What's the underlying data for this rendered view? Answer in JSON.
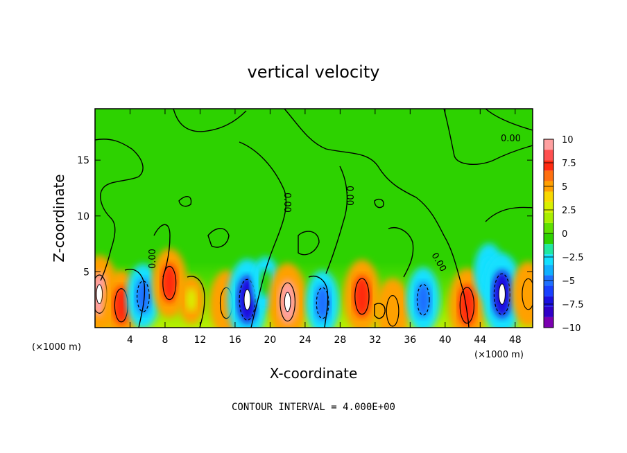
{
  "chart_data": {
    "type": "heatmap",
    "title": "vertical velocity",
    "xlabel": "X-coordinate",
    "ylabel": "Z-coordinate",
    "x_unit_left": "(×1000 m)",
    "x_unit_right": "(×1000 m)",
    "xlim": [
      0,
      50
    ],
    "ylim": [
      0,
      19.6
    ],
    "x_ticks": [
      4,
      8,
      12,
      16,
      20,
      24,
      28,
      32,
      36,
      40,
      44,
      48
    ],
    "y_ticks": [
      5,
      10,
      15
    ],
    "contour_interval_text": "CONTOUR INTERVAL = 4.000E+00",
    "contour_labels": [
      "0.00",
      "0.00",
      "0.00",
      "0.00",
      "0.00"
    ],
    "colorbar": {
      "min": -10,
      "max": 10,
      "tick_labels": [
        "10",
        "7.5",
        "5",
        "2.5",
        "0",
        "−2.5",
        "−5",
        "−7.5",
        "−10"
      ],
      "tick_values": [
        10,
        7.5,
        5,
        2.5,
        0,
        -2.5,
        -5,
        -7.5,
        -10
      ]
    },
    "cells": [
      {
        "x": 0.5,
        "z": 3.0,
        "w": 8
      },
      {
        "x": 3.0,
        "z": 2.0,
        "w": 6
      },
      {
        "x": 5.5,
        "z": 2.8,
        "w": -5
      },
      {
        "x": 8.5,
        "z": 4.0,
        "w": 6
      },
      {
        "x": 11.0,
        "z": 2.5,
        "w": 1
      },
      {
        "x": 15.0,
        "z": 2.2,
        "w": 5
      },
      {
        "x": 17.4,
        "z": 2.5,
        "w": -9
      },
      {
        "x": 19.5,
        "z": 4.0,
        "w": -2
      },
      {
        "x": 22.0,
        "z": 2.3,
        "w": 8
      },
      {
        "x": 26.0,
        "z": 2.2,
        "w": -5
      },
      {
        "x": 30.5,
        "z": 2.8,
        "w": 7
      },
      {
        "x": 34.0,
        "z": 1.5,
        "w": 5
      },
      {
        "x": 37.5,
        "z": 2.5,
        "w": -5
      },
      {
        "x": 42.5,
        "z": 2.0,
        "w": 7
      },
      {
        "x": 45.0,
        "z": 5.0,
        "w": -3
      },
      {
        "x": 46.5,
        "z": 3.0,
        "w": -9
      },
      {
        "x": 49.5,
        "z": 3.0,
        "w": 5
      }
    ]
  }
}
